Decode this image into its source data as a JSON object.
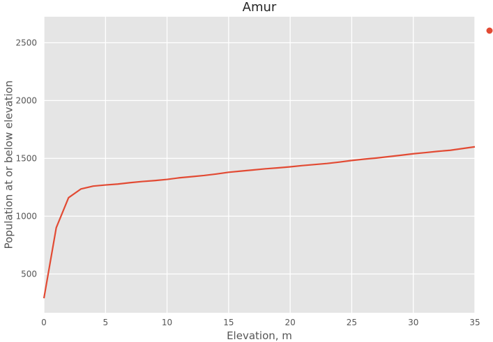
{
  "chart_data": {
    "type": "line",
    "title": "Amur",
    "xlabel": "Elevation, m",
    "ylabel": "Population at or below elevation",
    "xlim": [
      0,
      35
    ],
    "ylim": [
      165,
      2725
    ],
    "xticks": [
      0,
      5,
      10,
      15,
      20,
      25,
      30,
      35
    ],
    "yticks": [
      500,
      1000,
      1500,
      2000,
      2500
    ],
    "grid": true,
    "legend": "top-right, marker only, no label text",
    "colors": {
      "series": "#E24A33",
      "plot_background": "#E5E5E5",
      "grid": "#FFFFFF"
    },
    "series": [
      {
        "x": [
          0,
          1,
          2,
          3,
          4,
          5,
          6,
          7,
          8,
          9,
          10,
          11,
          12,
          13,
          14,
          15,
          16,
          17,
          18,
          19,
          20,
          21,
          22,
          23,
          24,
          25,
          26,
          27,
          28,
          29,
          30,
          31,
          32,
          33,
          34,
          35
        ],
        "y": [
          290,
          900,
          1160,
          1235,
          1260,
          1270,
          1278,
          1290,
          1300,
          1308,
          1318,
          1332,
          1342,
          1352,
          1365,
          1380,
          1390,
          1400,
          1410,
          1418,
          1427,
          1438,
          1447,
          1456,
          1468,
          1482,
          1493,
          1503,
          1515,
          1527,
          1540,
          1550,
          1561,
          1570,
          1585,
          1600
        ]
      }
    ]
  }
}
